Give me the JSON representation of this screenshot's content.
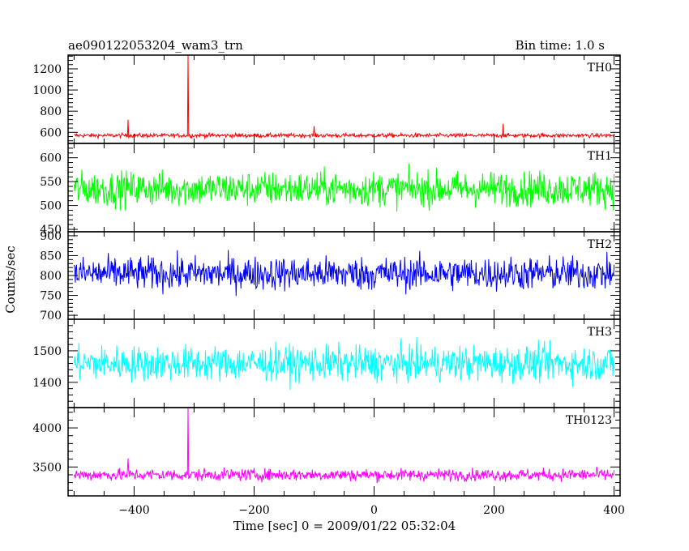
{
  "header": {
    "title": "ae090122053204_wam3_trn",
    "bin_time": "Bin time: 1.0 s"
  },
  "chart_data": {
    "type": "line",
    "title": "ae090122053204_wam3_trn",
    "subtitle": "Bin time: 1.0 s",
    "xlabel": "Time [sec] 0 = 2009/01/22 05:32:04",
    "ylabel": "Counts/sec",
    "xlim": [
      -510,
      410
    ],
    "x_ticks": [
      -400,
      -200,
      0,
      200,
      400
    ],
    "x_tick_labels": [
      "−400",
      "−200",
      "0",
      "200",
      "400"
    ],
    "x_range_of_data": [
      -500,
      400
    ],
    "grid": false,
    "panels": [
      {
        "name": "TH0",
        "color": "#ff0000",
        "ylim": [
          495,
          1330
        ],
        "y_ticks": [
          600,
          800,
          1000,
          1200
        ],
        "baseline": 570,
        "noise_sigma": 14,
        "spikes": [
          [
            -310,
            1330
          ],
          [
            -410,
            720
          ],
          [
            -100,
            660
          ],
          [
            215,
            680
          ]
        ]
      },
      {
        "name": "TH1",
        "color": "#00ff00",
        "ylim": [
          445,
          630
        ],
        "y_ticks": [
          450,
          500,
          550,
          600
        ],
        "baseline": 535,
        "noise_sigma": 26,
        "spikes": []
      },
      {
        "name": "TH2",
        "color": "#0000ff",
        "ylim": [
          690,
          910
        ],
        "y_ticks": [
          700,
          750,
          800,
          850,
          900
        ],
        "baseline": 805,
        "noise_sigma": 30,
        "spikes": []
      },
      {
        "name": "TH3",
        "color": "#00ffff",
        "ylim": [
          1320,
          1600
        ],
        "y_ticks": [
          1400,
          1500
        ],
        "baseline": 1460,
        "noise_sigma": 40,
        "spikes": []
      },
      {
        "name": "TH0123",
        "color": "#ff00ff",
        "ylim": [
          3130,
          4260
        ],
        "y_ticks": [
          3500,
          4000
        ],
        "baseline": 3400,
        "noise_sigma": 55,
        "spikes": [
          [
            -310,
            4260
          ],
          [
            -410,
            3610
          ]
        ]
      }
    ]
  }
}
